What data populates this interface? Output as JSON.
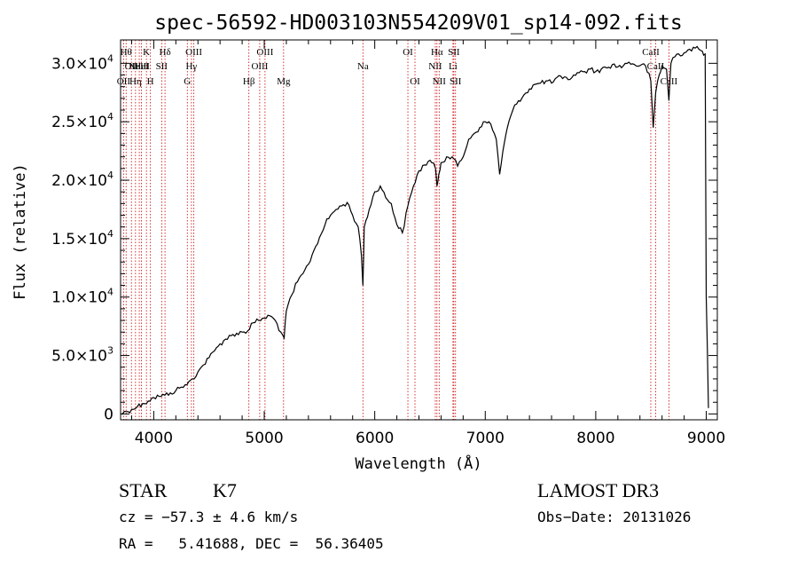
{
  "chart_data": {
    "type": "line",
    "title": "spec-56592-HD003103N554209V01_sp14-092.fits",
    "xlabel": "Wavelength (Å)",
    "ylabel": "Flux (relative)",
    "xlim": [
      3700,
      9100
    ],
    "ylim": [
      -500,
      32000
    ],
    "x_ticks": [
      {
        "value": 4000,
        "label": "4000"
      },
      {
        "value": 5000,
        "label": "5000"
      },
      {
        "value": 6000,
        "label": "6000"
      },
      {
        "value": 7000,
        "label": "7000"
      },
      {
        "value": 8000,
        "label": "8000"
      },
      {
        "value": 9000,
        "label": "9000"
      }
    ],
    "y_ticks": [
      {
        "value": 0,
        "mant": "0",
        "exp": ""
      },
      {
        "value": 5000,
        "mant": "5.0×10",
        "exp": "3"
      },
      {
        "value": 10000,
        "mant": "1.0×10",
        "exp": "4"
      },
      {
        "value": 15000,
        "mant": "1.5×10",
        "exp": "4"
      },
      {
        "value": 20000,
        "mant": "2.0×10",
        "exp": "4"
      },
      {
        "value": 25000,
        "mant": "2.5×10",
        "exp": "4"
      },
      {
        "value": 30000,
        "mant": "3.0×10",
        "exp": "4"
      }
    ],
    "series": [
      {
        "name": "spectrum",
        "x": [
          3700,
          3750,
          3800,
          3850,
          3900,
          3950,
          4000,
          4050,
          4100,
          4150,
          4200,
          4250,
          4300,
          4350,
          4400,
          4450,
          4500,
          4550,
          4600,
          4650,
          4700,
          4750,
          4800,
          4850,
          4900,
          4950,
          5000,
          5050,
          5100,
          5150,
          5180,
          5200,
          5250,
          5300,
          5350,
          5400,
          5450,
          5500,
          5550,
          5600,
          5650,
          5700,
          5750,
          5800,
          5850,
          5880,
          5893,
          5905,
          5950,
          6000,
          6050,
          6100,
          6150,
          6200,
          6250,
          6300,
          6350,
          6400,
          6450,
          6500,
          6550,
          6563,
          6580,
          6600,
          6650,
          6700,
          6750,
          6800,
          6850,
          6900,
          6950,
          7000,
          7050,
          7100,
          7130,
          7160,
          7200,
          7250,
          7300,
          7350,
          7400,
          7450,
          7500,
          7550,
          7600,
          7650,
          7700,
          7750,
          7800,
          7850,
          7900,
          7950,
          8000,
          8050,
          8100,
          8150,
          8200,
          8250,
          8300,
          8350,
          8400,
          8450,
          8498,
          8520,
          8542,
          8560,
          8600,
          8640,
          8662,
          8680,
          8700,
          8750,
          8800,
          8850,
          8900,
          8950,
          8990,
          9000,
          9020
        ],
        "y": [
          0,
          200,
          400,
          600,
          900,
          1100,
          1400,
          1500,
          1600,
          1800,
          2000,
          2300,
          2500,
          3000,
          3600,
          4200,
          4800,
          5400,
          6000,
          6400,
          6700,
          6900,
          7000,
          7100,
          7800,
          8000,
          8200,
          8400,
          8000,
          7000,
          6500,
          8800,
          10200,
          11300,
          12000,
          12800,
          14000,
          15100,
          16200,
          17000,
          17500,
          17800,
          18100,
          17000,
          16000,
          13500,
          11000,
          16000,
          17500,
          19000,
          19500,
          18500,
          18000,
          16200,
          15500,
          17800,
          19500,
          20800,
          21300,
          21700,
          21000,
          19500,
          20500,
          21500,
          22000,
          22000,
          21200,
          22000,
          23500,
          24000,
          24500,
          25000,
          24800,
          23500,
          20500,
          22500,
          24500,
          26000,
          26800,
          27300,
          27800,
          28200,
          28300,
          28500,
          28300,
          28800,
          28700,
          28600,
          29000,
          29200,
          29300,
          29500,
          29300,
          29500,
          29600,
          29900,
          29700,
          29800,
          30100,
          29900,
          29800,
          29800,
          28500,
          24500,
          27500,
          28500,
          29800,
          29500,
          26800,
          30000,
          30500,
          30800,
          30900,
          31200,
          31300,
          31100,
          30800,
          10000,
          500
        ]
      }
    ],
    "lines": [
      {
        "x": 3727,
        "label": "OII",
        "row": 2
      },
      {
        "x": 3750,
        "label": "Hθ",
        "row": 0
      },
      {
        "x": 3798,
        "label": "OII",
        "row": 1
      },
      {
        "x": 3835,
        "label": "Hη",
        "row": 2
      },
      {
        "x": 3869,
        "label": "NeIII",
        "row": 1
      },
      {
        "x": 3889,
        "label": "HeI",
        "row": 1
      },
      {
        "x": 3934,
        "label": "K",
        "row": 0
      },
      {
        "x": 3970,
        "label": "H",
        "row": 2
      },
      {
        "x": 4072,
        "label": "SII",
        "row": 1
      },
      {
        "x": 4102,
        "label": "Hδ",
        "row": 0
      },
      {
        "x": 4304,
        "label": "G",
        "row": 2
      },
      {
        "x": 4341,
        "label": "Hγ",
        "row": 1
      },
      {
        "x": 4363,
        "label": "OIII",
        "row": 0
      },
      {
        "x": 4861,
        "label": "Hβ",
        "row": 2
      },
      {
        "x": 4959,
        "label": "OIII",
        "row": 1
      },
      {
        "x": 5007,
        "label": "OIII",
        "row": 0
      },
      {
        "x": 5175,
        "label": "Mg",
        "row": 2
      },
      {
        "x": 5893,
        "label": "Na",
        "row": 1
      },
      {
        "x": 6300,
        "label": "OI",
        "row": 0
      },
      {
        "x": 6364,
        "label": "OI",
        "row": 2
      },
      {
        "x": 6548,
        "label": "NII",
        "row": 1
      },
      {
        "x": 6563,
        "label": "Hα",
        "row": 0
      },
      {
        "x": 6583,
        "label": "NII",
        "row": 2
      },
      {
        "x": 6708,
        "label": "Li",
        "row": 1
      },
      {
        "x": 6716,
        "label": "SII",
        "row": 0
      },
      {
        "x": 6731,
        "label": "SII",
        "row": 2
      },
      {
        "x": 8498,
        "label": "CaII",
        "row": 0
      },
      {
        "x": 8542,
        "label": "CaII",
        "row": 1
      },
      {
        "x": 8662,
        "label": "CaII",
        "row": 2
      }
    ]
  },
  "info": {
    "class_type": "STAR",
    "subclass": "K7",
    "cz": "cz = −57.3 ± 4.6 km/s",
    "coords": "RA =   5.41688, DEC =  56.36405",
    "survey": "LAMOST DR3",
    "obs_date": "Obs−Date: 20131026"
  },
  "colors": {
    "spectrum": "#000000",
    "line_marker": "#cc0000",
    "text": "#000000"
  }
}
